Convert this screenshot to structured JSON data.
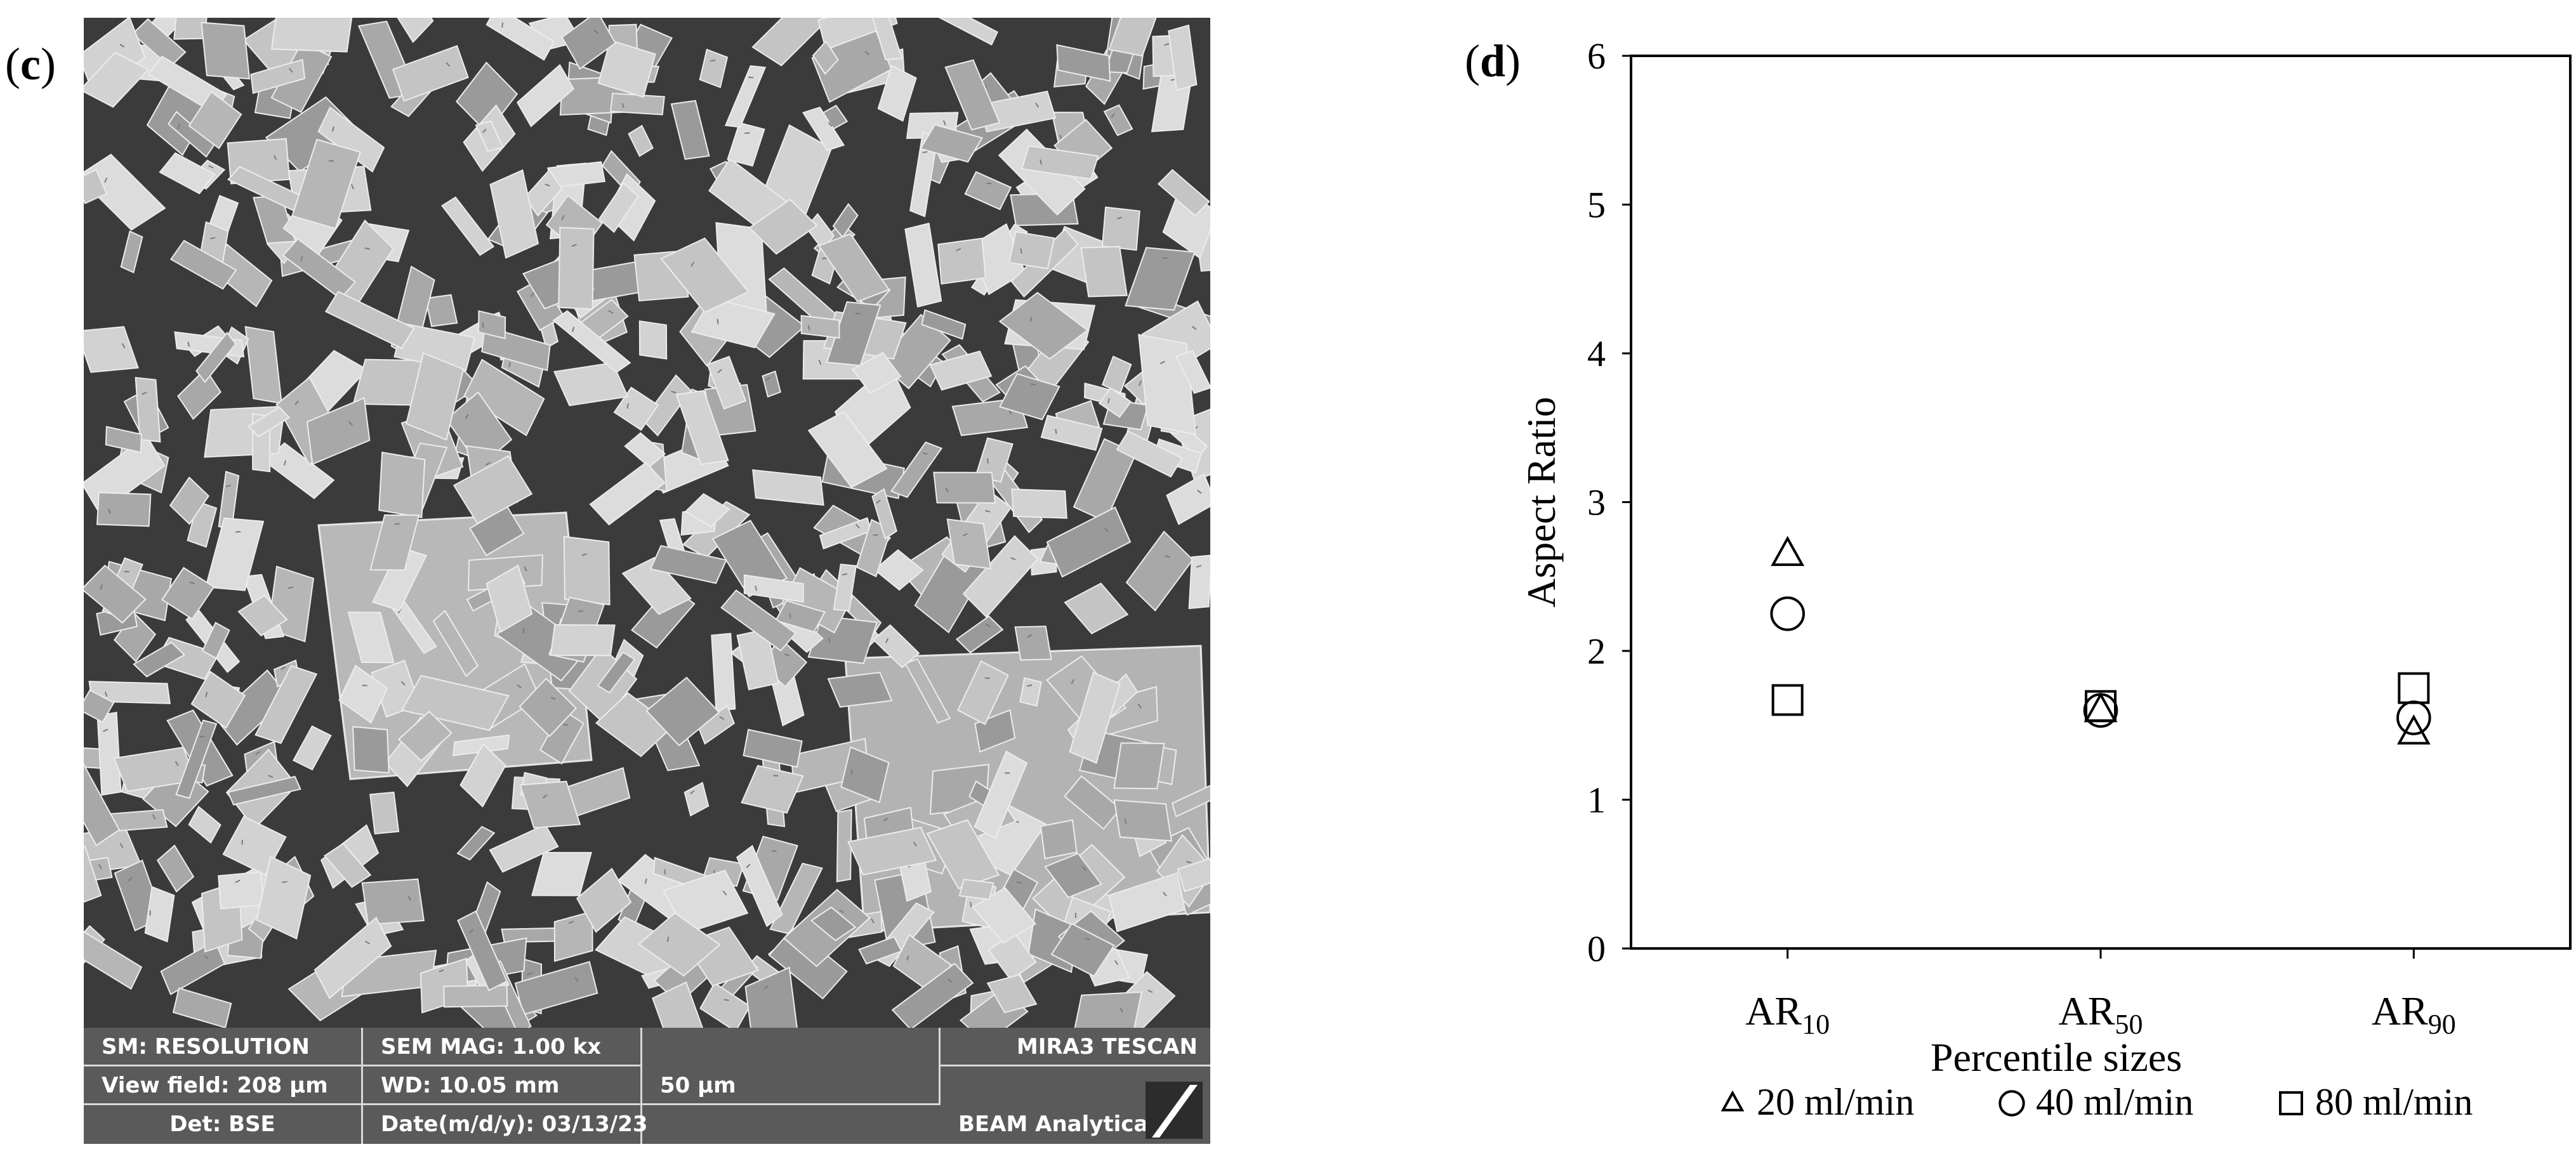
{
  "panels": {
    "c_label": "c",
    "d_label": "d"
  },
  "sem": {
    "databar": {
      "sm": "SM: RESOLUTION",
      "mag": "SEM MAG: 1.00 kx",
      "instrument": "MIRA3 TESCAN",
      "view_field": "View field: 208 µm",
      "wd": "WD: 10.05 mm",
      "scale": "50 µm",
      "det": "Det: BSE",
      "date": "Date(m/d/y): 03/13/23",
      "lab": "BEAM Analytical"
    },
    "colors": {
      "background": "#3b3b3b",
      "databar": "#5a5a5a",
      "crystal": "#bdbdbd"
    }
  },
  "chart_data": {
    "type": "scatter",
    "title": "",
    "xlabel": "Percentile sizes",
    "ylabel": "Aspect Ratio",
    "ylim": [
      0,
      6
    ],
    "yticks": [
      "0",
      "1",
      "2",
      "3",
      "4",
      "5",
      "6"
    ],
    "categories": [
      {
        "main": "AR",
        "sub": "10"
      },
      {
        "main": "AR",
        "sub": "50"
      },
      {
        "main": "AR",
        "sub": "90"
      }
    ],
    "grid": false,
    "legend_position": "bottom",
    "series": [
      {
        "name": "20 ml/min",
        "marker": "triangle",
        "values": [
          2.65,
          1.6,
          1.45
        ]
      },
      {
        "name": "40 ml/min",
        "marker": "circle",
        "values": [
          2.25,
          1.6,
          1.55
        ]
      },
      {
        "name": "80 ml/min",
        "marker": "square",
        "values": [
          1.67,
          1.63,
          1.75
        ]
      }
    ]
  }
}
